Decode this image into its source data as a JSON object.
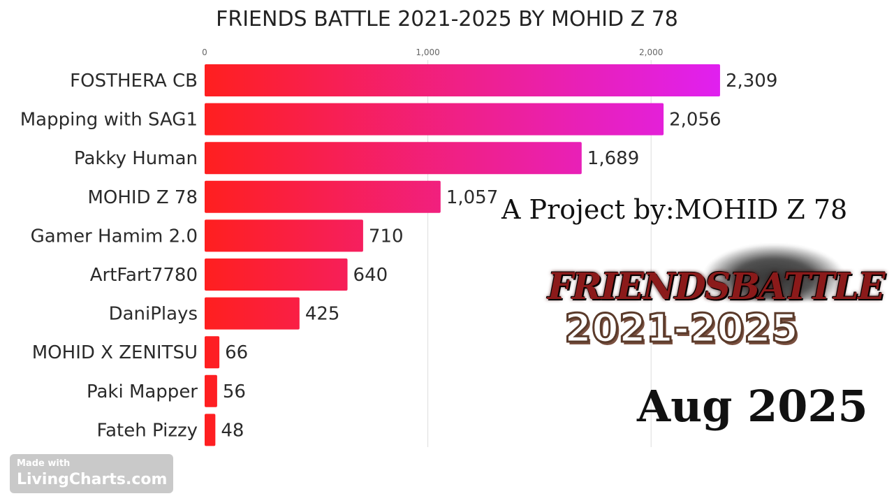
{
  "chart_data": {
    "type": "bar",
    "orientation": "horizontal",
    "title": "FRIENDS BATTLE 2021-2025 BY MOHID Z 78",
    "xlabel": "",
    "ylabel": "",
    "xlim": [
      0,
      2400
    ],
    "ticks": [
      0,
      1000,
      2000
    ],
    "tick_labels": [
      "0",
      "1,000",
      "2,000"
    ],
    "grid": true,
    "categories": [
      "FOSTHERA CB",
      "Mapping with SAG1",
      "Pakky Human",
      "MOHID Z 78",
      "Gamer Hamim 2.0",
      "ArtFart7780",
      "DaniPlays",
      "MOHID X ZENITSU",
      "Paki Mapper",
      "Fateh Pizzy"
    ],
    "values": [
      2309,
      2056,
      1689,
      1057,
      710,
      640,
      425,
      66,
      56,
      48
    ],
    "value_labels": [
      "2,309",
      "2,056",
      "1,689",
      "1,057",
      "710",
      "640",
      "425",
      "66",
      "56",
      "48"
    ],
    "colors": {
      "bar_start": "#ff1f1f",
      "bar_end": "#e020f0",
      "gridline": "#dddddd"
    }
  },
  "overlay": {
    "project_text": "A Project by:MOHID Z 78",
    "logo_word": "FRIENDSBATTLE",
    "logo_years": "2021-2025",
    "date": "Aug 2025"
  },
  "watermark": {
    "line1": "Made with",
    "line2": "LivingCharts.com"
  }
}
